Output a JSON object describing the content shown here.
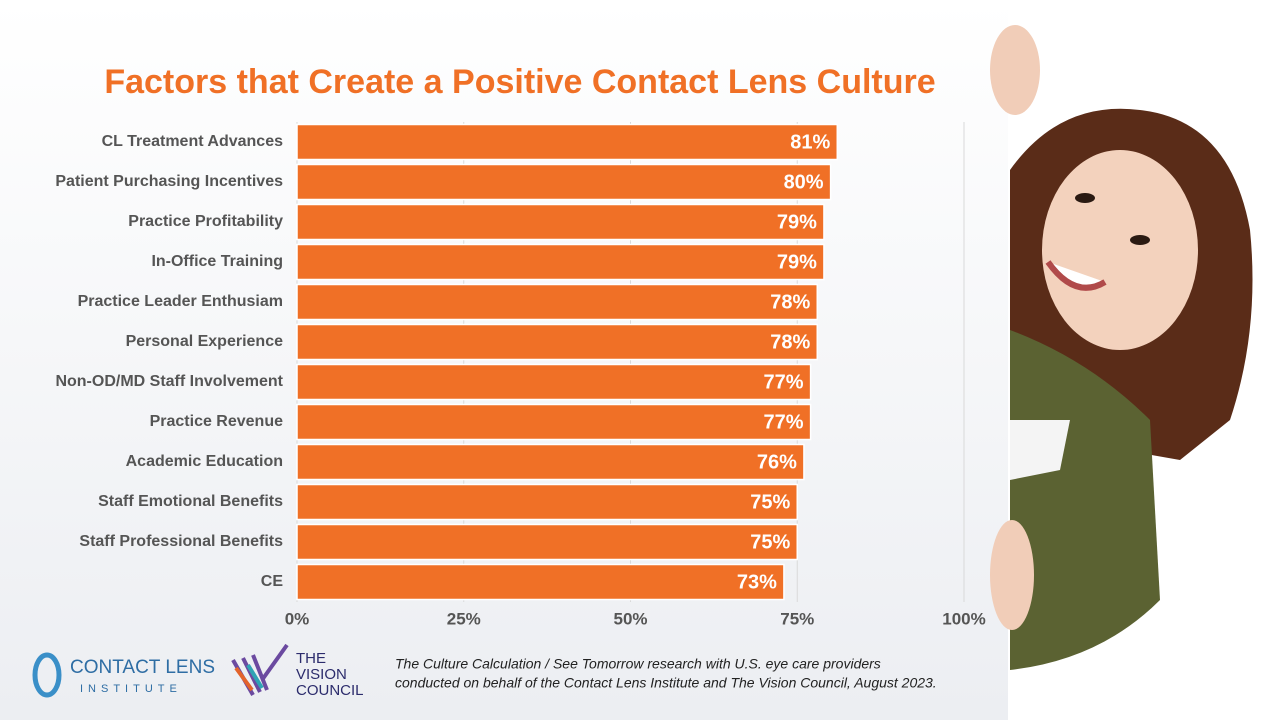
{
  "chart_data": {
    "type": "hbar",
    "title": "Factors that Create a Positive Contact Lens Culture",
    "categories": [
      "CL Treatment Advances",
      "Patient Purchasing Incentives",
      "Practice Profitability",
      "In-Office Training",
      "Practice Leader Enthusiam",
      "Personal Experience",
      "Non-OD/MD Staff Involvement",
      "Practice Revenue",
      "Academic Education",
      "Staff Emotional Benefits",
      "Staff Professional Benefits",
      "CE"
    ],
    "values": [
      81,
      80,
      79,
      79,
      78,
      78,
      77,
      77,
      76,
      75,
      75,
      73
    ],
    "value_labels": [
      "81%",
      "80%",
      "79%",
      "79%",
      "78%",
      "78%",
      "77%",
      "77%",
      "76%",
      "75%",
      "75%",
      "73%"
    ],
    "color": "#f07026",
    "xlim": [
      0,
      100
    ],
    "xticks": [
      {
        "value": 0,
        "label": "0%"
      },
      {
        "value": 25,
        "label": "25%"
      },
      {
        "value": 50,
        "label": "50%"
      },
      {
        "value": 75,
        "label": "75%"
      },
      {
        "value": 100,
        "label": "100%"
      }
    ],
    "grid": true,
    "source": [
      "The Culture Calculation / See Tomorrow research with U.S. eye care providers",
      "conducted on behalf of the Contact Lens Institute and The Vision Council, August 2023."
    ]
  },
  "logos": {
    "cli": [
      "CONTACT LENS",
      "INSTITUTE"
    ],
    "tvc": [
      "THE",
      "VISION",
      "COUNCIL"
    ]
  }
}
